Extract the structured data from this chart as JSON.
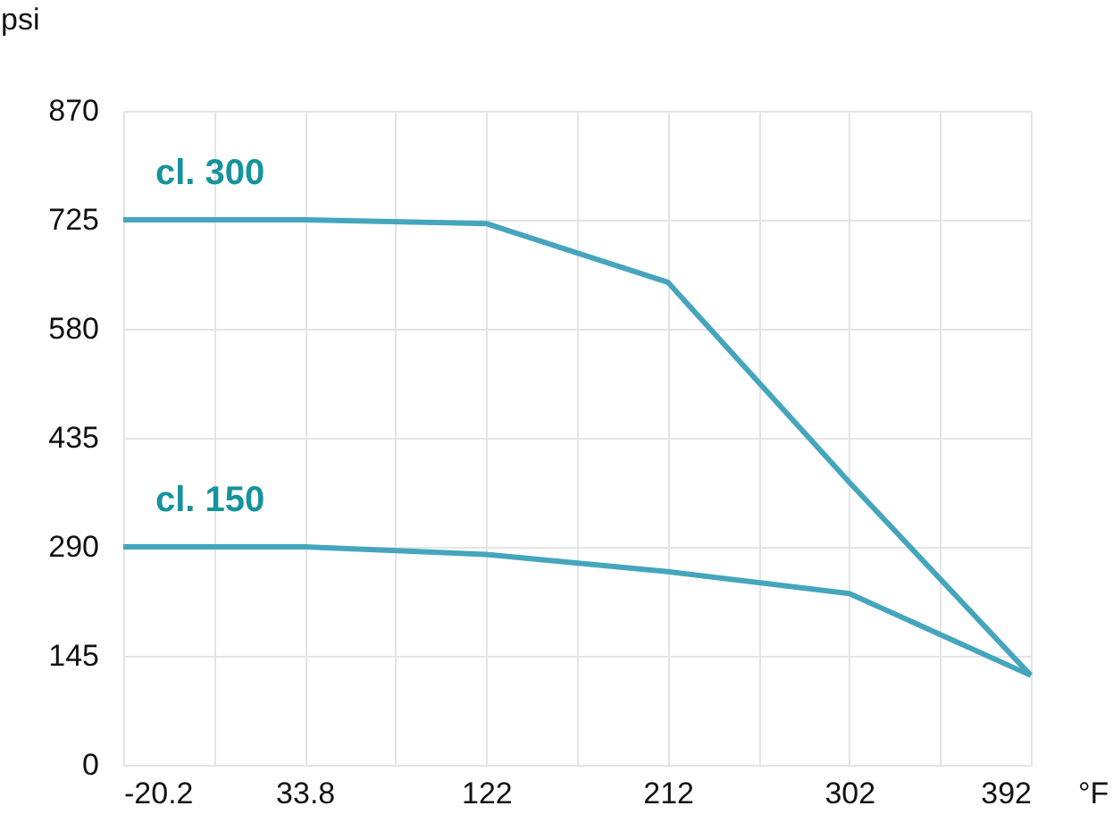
{
  "chart_data": {
    "type": "line",
    "xlabel": "°F",
    "ylabel": "psi",
    "categories": [
      "-20.2",
      "33.8",
      "122",
      "212",
      "302",
      "392"
    ],
    "series": [
      {
        "name": "cl. 300",
        "color": "#45a5bd",
        "values": [
          725,
          725,
          720,
          642,
          376,
          119
        ]
      },
      {
        "name": "cl. 150",
        "color": "#45a5bd",
        "values": [
          290,
          290,
          280,
          257,
          228,
          119
        ]
      }
    ],
    "ylim": [
      0,
      870
    ],
    "yticks": [
      0,
      145,
      290,
      435,
      580,
      725,
      870
    ],
    "grid": true,
    "marker": "none",
    "line_style": "solid"
  }
}
